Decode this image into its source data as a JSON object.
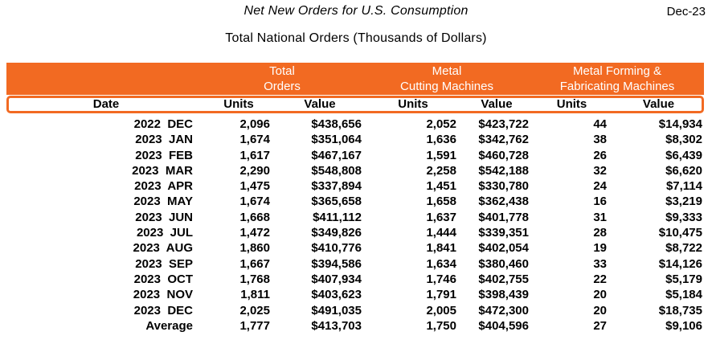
{
  "header": {
    "title": "Net New Orders for U.S. Consumption",
    "date_label": "Dec-23",
    "subtitle": "Total National Orders (Thousands of Dollars)"
  },
  "accent_color": "#F26A22",
  "table": {
    "group_headers": [
      {
        "line1": "Total",
        "line2": "Orders"
      },
      {
        "line1": "Metal",
        "line2": "Cutting Machines"
      },
      {
        "line1": "Metal Forming &",
        "line2": "Fabricating Machines"
      }
    ],
    "columns": [
      "Date",
      "Units",
      "Value",
      "Units",
      "Value",
      "Units",
      "Value"
    ],
    "rows": [
      {
        "date": "2022  DEC",
        "cells": [
          "2,096",
          "$438,656",
          "2,052",
          "$423,722",
          "44",
          "$14,934"
        ]
      },
      {
        "date": "2023  JAN",
        "cells": [
          "1,674",
          "$351,064",
          "1,636",
          "$342,762",
          "38",
          "$8,302"
        ]
      },
      {
        "date": "2023  FEB",
        "cells": [
          "1,617",
          "$467,167",
          "1,591",
          "$460,728",
          "26",
          "$6,439"
        ]
      },
      {
        "date": "2023  MAR",
        "cells": [
          "2,290",
          "$548,808",
          "2,258",
          "$542,188",
          "32",
          "$6,620"
        ]
      },
      {
        "date": "2023  APR",
        "cells": [
          "1,475",
          "$337,894",
          "1,451",
          "$330,780",
          "24",
          "$7,114"
        ]
      },
      {
        "date": "2023  MAY",
        "cells": [
          "1,674",
          "$365,658",
          "1,658",
          "$362,438",
          "16",
          "$3,219"
        ]
      },
      {
        "date": "2023  JUN",
        "cells": [
          "1,668",
          "$411,112",
          "1,637",
          "$401,778",
          "31",
          "$9,333"
        ]
      },
      {
        "date": "2023  JUL",
        "cells": [
          "1,472",
          "$349,826",
          "1,444",
          "$339,351",
          "28",
          "$10,475"
        ]
      },
      {
        "date": "2023  AUG",
        "cells": [
          "1,860",
          "$410,776",
          "1,841",
          "$402,054",
          "19",
          "$8,722"
        ]
      },
      {
        "date": "2023  SEP",
        "cells": [
          "1,667",
          "$394,586",
          "1,634",
          "$380,460",
          "33",
          "$14,126"
        ]
      },
      {
        "date": "2023  OCT",
        "cells": [
          "1,768",
          "$407,934",
          "1,746",
          "$402,755",
          "22",
          "$5,179"
        ]
      },
      {
        "date": "2023  NOV",
        "cells": [
          "1,811",
          "$403,623",
          "1,791",
          "$398,439",
          "20",
          "$5,184"
        ]
      },
      {
        "date": "2023  DEC",
        "cells": [
          "2,025",
          "$491,035",
          "2,005",
          "$472,300",
          "20",
          "$18,735"
        ]
      },
      {
        "date": "Average",
        "cells": [
          "1,777",
          "$413,703",
          "1,750",
          "$404,596",
          "27",
          "$9,106"
        ]
      }
    ]
  }
}
